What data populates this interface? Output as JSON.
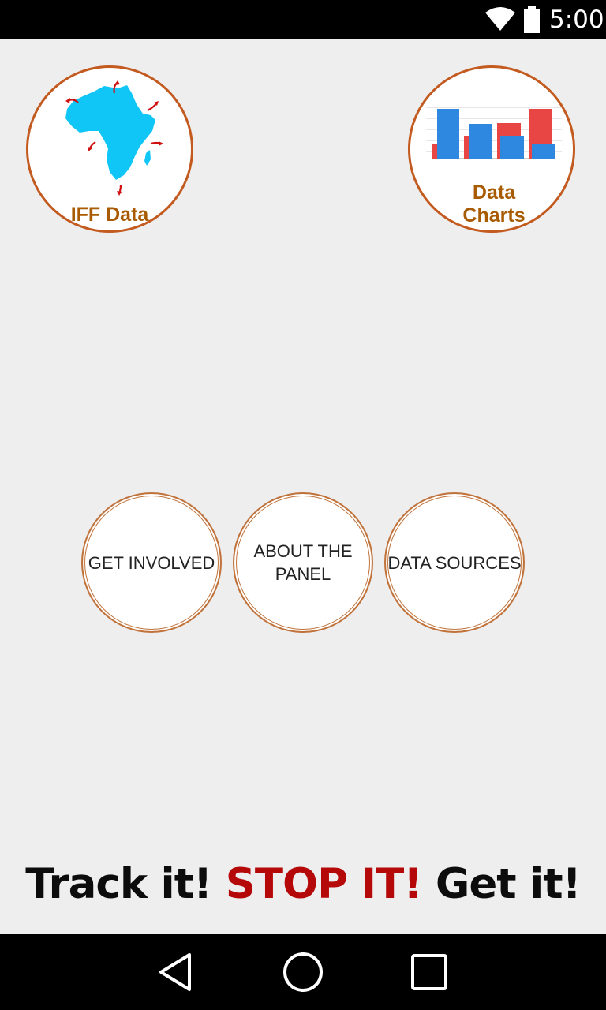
{
  "status_bar": {
    "time": "5:00",
    "icons": [
      "wifi-icon",
      "battery-icon"
    ]
  },
  "home": {
    "iff_button": {
      "label": "IFF Data",
      "icon": "africa-map-icon"
    },
    "charts_button": {
      "label": "Data\nCharts",
      "icon": "bar-chart-icon"
    },
    "get_involved": "GET INVOLVED",
    "about_panel": "ABOUT THE\nPANEL",
    "data_sources": "DATA SOURCES"
  },
  "slogan": {
    "part1": "Track it! ",
    "part2": "STOP IT!",
    "part3": " Get it!"
  },
  "colors": {
    "circle_border": "#c35a1f",
    "label_brown": "#a85b00",
    "slogan_red": "#b50808",
    "chart_blue": "#2f88e0",
    "chart_red": "#e84545",
    "map_cyan": "#10c6f7"
  },
  "nav_bar": {
    "buttons": [
      "back-icon",
      "home-icon",
      "recents-icon"
    ]
  }
}
